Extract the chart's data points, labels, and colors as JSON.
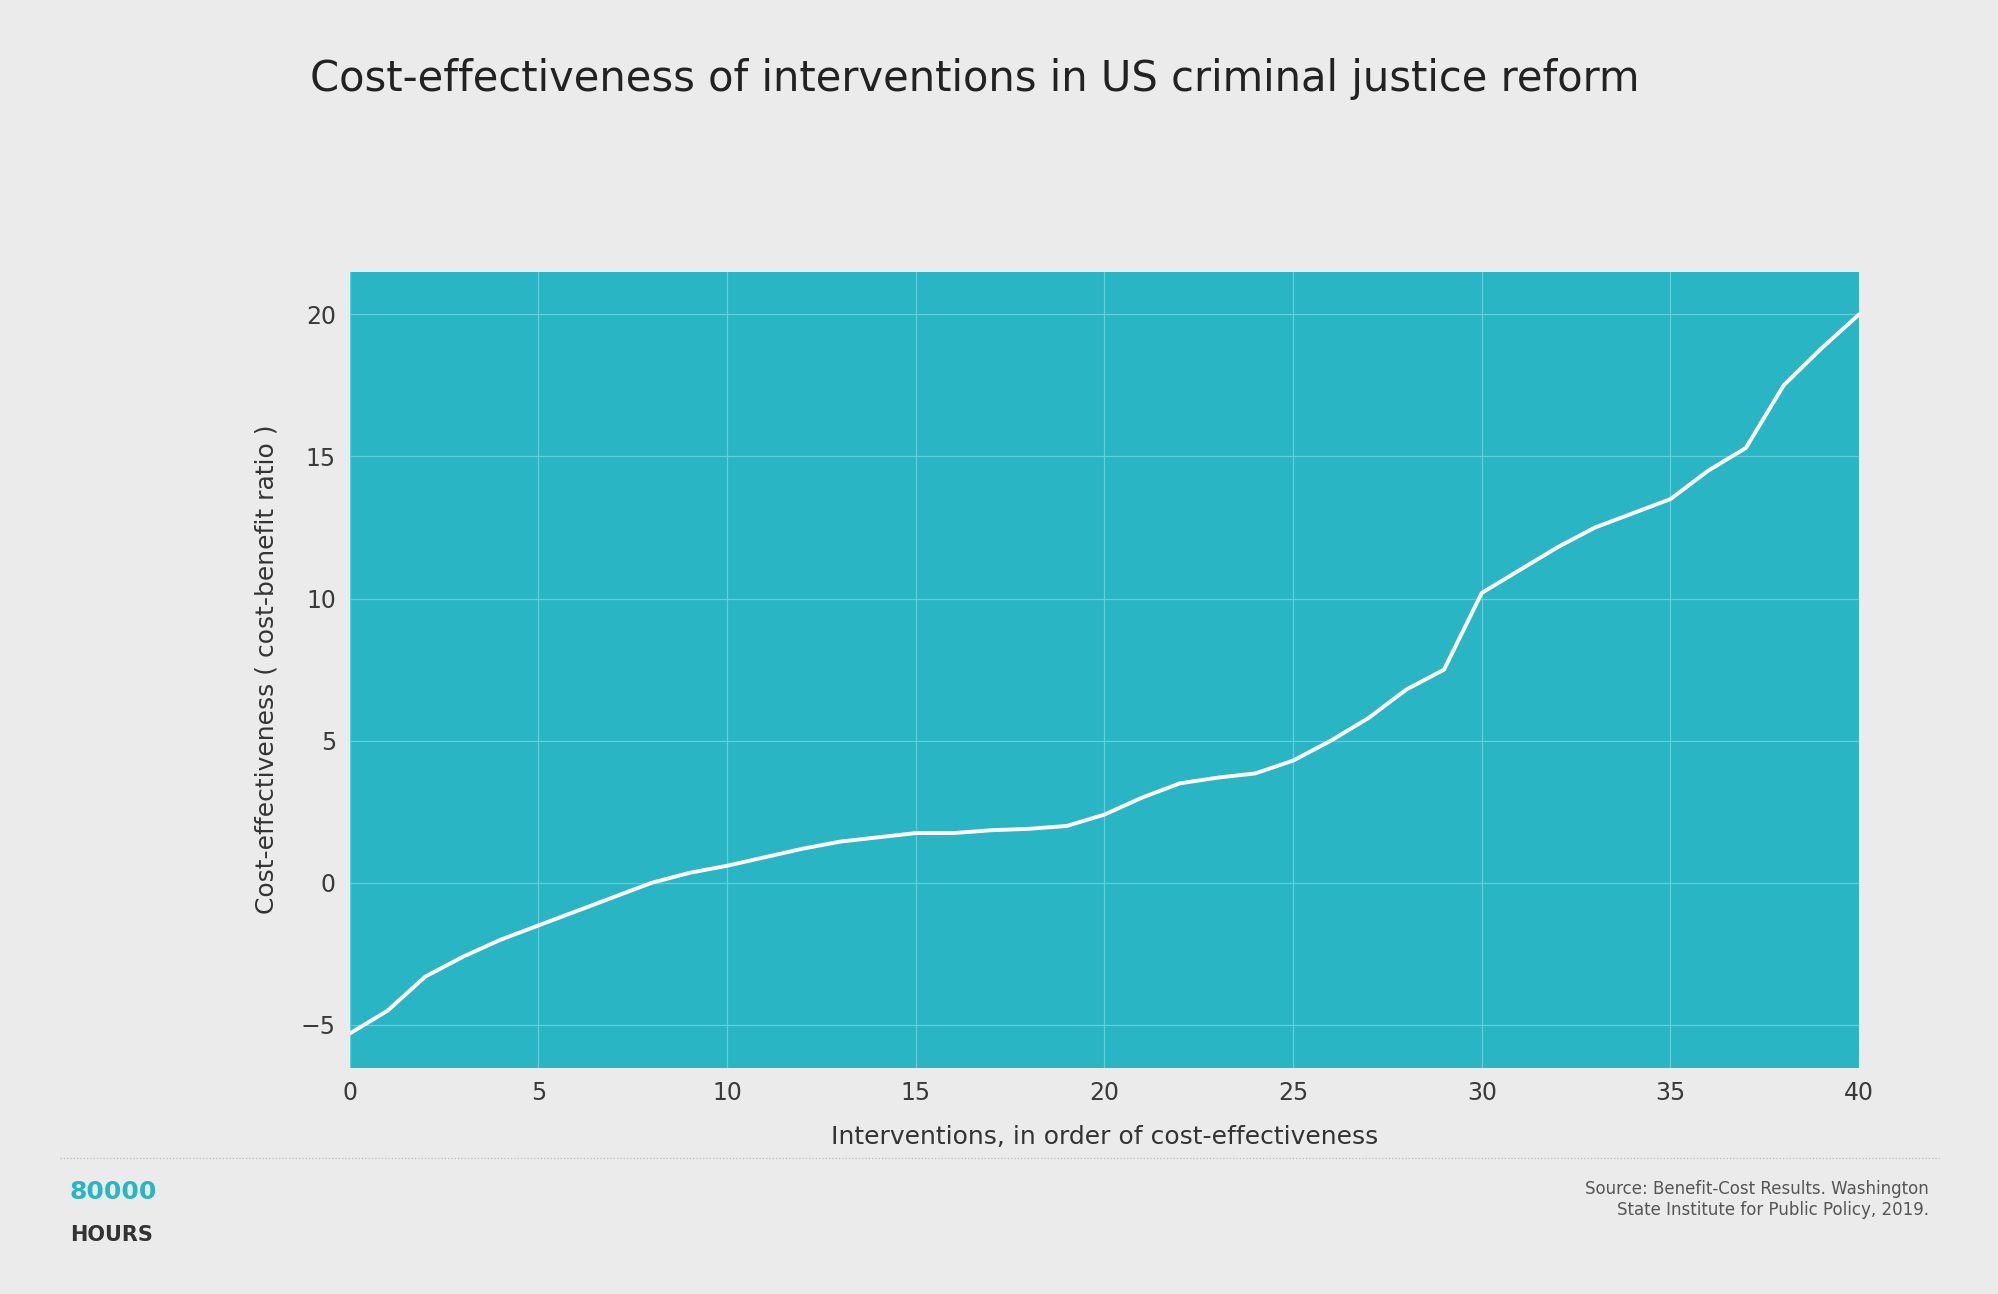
{
  "title": "Cost-effectiveness of interventions in US criminal justice reform",
  "xlabel": "Interventions, in order of cost-effectiveness",
  "ylabel": "Cost-effectiveness ( cost-benefit ratio )",
  "background_color": "#ebebeb",
  "plot_bg_color": "#2ab5c5",
  "line_color": "#ffffff",
  "grid_color": "#5ecfdc",
  "title_fontsize": 30,
  "label_fontsize": 18,
  "tick_fontsize": 17,
  "source_text": "Source: Benefit-Cost Results. Washington\nState Institute for Public Policy, 2019.",
  "brand_text_80000": "80000",
  "brand_text_hours": "HOURS",
  "brand_color": "#2ab5c5",
  "footer_line_color": "#bbbbbb",
  "xlim": [
    0,
    40
  ],
  "ylim": [
    -6.5,
    21.5
  ],
  "xticks": [
    0,
    5,
    10,
    15,
    20,
    25,
    30,
    35,
    40
  ],
  "yticks": [
    -5,
    0,
    5,
    10,
    15,
    20
  ],
  "x_data": [
    0,
    1,
    2,
    3,
    4,
    5,
    6,
    7,
    8,
    9,
    10,
    11,
    12,
    13,
    14,
    15,
    16,
    17,
    18,
    19,
    20,
    21,
    22,
    23,
    24,
    25,
    26,
    27,
    28,
    29,
    30,
    31,
    32,
    33,
    34,
    35,
    36,
    37,
    38,
    39,
    40
  ],
  "y_data": [
    -5.3,
    -4.5,
    -3.3,
    -2.6,
    -2.0,
    -1.5,
    -1.0,
    -0.5,
    0.0,
    0.35,
    0.6,
    0.9,
    1.2,
    1.45,
    1.6,
    1.75,
    1.75,
    1.85,
    1.9,
    2.0,
    2.4,
    3.0,
    3.5,
    3.7,
    3.85,
    4.3,
    5.0,
    5.8,
    6.8,
    7.5,
    10.2,
    11.0,
    11.8,
    12.5,
    13.0,
    13.5,
    14.5,
    15.3,
    17.5,
    18.8,
    20.0
  ]
}
